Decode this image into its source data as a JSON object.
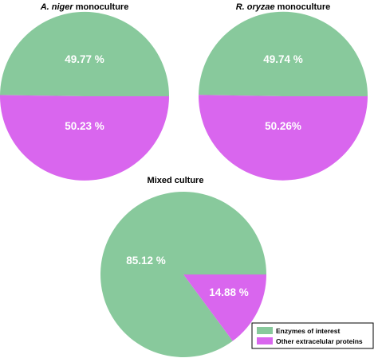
{
  "chart_data": [
    {
      "type": "pie",
      "title_italic": "A. niger",
      "title_rest": " monoculture",
      "categories": [
        "Enzymes of interest",
        "Other extracelular proteins"
      ],
      "values": [
        49.77,
        50.23
      ],
      "labels": [
        "49.77 %",
        "50.23 %"
      ]
    },
    {
      "type": "pie",
      "title_italic": "R. oryzae",
      "title_rest": " monoculture",
      "categories": [
        "Enzymes of interest",
        "Other extracelular proteins"
      ],
      "values": [
        49.74,
        50.26
      ],
      "labels": [
        "49.74 %",
        "50.26%"
      ]
    },
    {
      "type": "pie",
      "title_italic": "",
      "title_rest": "Mixed culture",
      "categories": [
        "Enzymes of interest",
        "Other extracelular proteins"
      ],
      "values": [
        85.12,
        14.88
      ],
      "labels": [
        "85.12 %",
        "14.88 %"
      ]
    }
  ],
  "legend": {
    "placement": "bottom-right",
    "items": [
      {
        "label": "Enzymes of interest",
        "color": "#88c99c"
      },
      {
        "label": "Other extracelular proteins",
        "color": "#d966ee"
      }
    ]
  },
  "colors": {
    "enzymes": "#88c99c",
    "other": "#d966ee"
  }
}
